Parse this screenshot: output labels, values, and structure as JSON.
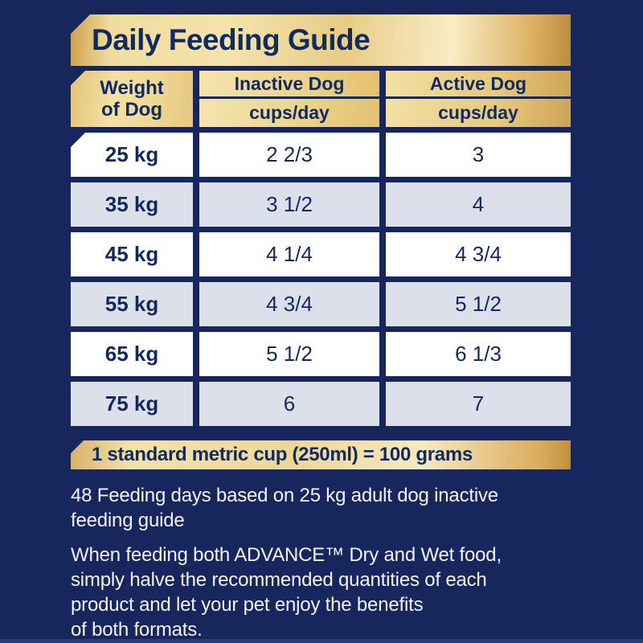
{
  "title": "Daily Feeding Guide",
  "table": {
    "weight_header": {
      "line1": "Weight",
      "line2": "of Dog"
    },
    "columns": [
      {
        "label": "Inactive Dog",
        "unit": "cups/day"
      },
      {
        "label": "Active Dog",
        "unit": "cups/day"
      }
    ],
    "rows": [
      {
        "weight": "25 kg",
        "inactive": "2 2/3",
        "active": "3"
      },
      {
        "weight": "35 kg",
        "inactive": "3 1/2",
        "active": "4"
      },
      {
        "weight": "45 kg",
        "inactive": "4 1/4",
        "active": "4 3/4"
      },
      {
        "weight": "55 kg",
        "inactive": "4 3/4",
        "active": "5 1/2"
      },
      {
        "weight": "65 kg",
        "inactive": "5 1/2",
        "active": "6 1/3"
      },
      {
        "weight": "75 kg",
        "inactive": "6",
        "active": "7"
      }
    ]
  },
  "cup_note": "1 standard metric cup (250ml) = 100 grams",
  "notes": {
    "feeding_days": {
      "line1": "48 Feeding days based on 25 kg adult dog inactive",
      "line2": "feeding guide"
    },
    "mixed_feeding": {
      "line1": "When feeding both ADVANCE™ Dry and Wet food,",
      "line2": "simply halve the recommended quantities of each",
      "line3": "product and let your pet enjoy the benefits",
      "line4": "of both formats."
    }
  },
  "colors": {
    "background_navy": "#17265C",
    "text_navy": "#13295E",
    "row_white": "#FFFFFF",
    "row_alt_gray": "#DCE0EA",
    "gold_light": "#F6E7B4",
    "gold_dark": "#BD8C3E",
    "body_text_white": "#F2F3F7"
  },
  "chart_data": {
    "type": "table",
    "title": "Daily Feeding Guide",
    "columns": [
      "Weight of Dog",
      "Inactive Dog (cups/day)",
      "Active Dog (cups/day)"
    ],
    "rows": [
      [
        "25 kg",
        "2 2/3",
        "3"
      ],
      [
        "35 kg",
        "3 1/2",
        "4"
      ],
      [
        "45 kg",
        "4 1/4",
        "4 3/4"
      ],
      [
        "55 kg",
        "4 3/4",
        "5 1/2"
      ],
      [
        "65 kg",
        "5 1/2",
        "6 1/3"
      ],
      [
        "75 kg",
        "6",
        "7"
      ]
    ],
    "footnotes": [
      "1 standard metric cup (250ml) = 100 grams",
      "48 Feeding days based on 25 kg adult dog inactive feeding guide",
      "When feeding both ADVANCE™ Dry and Wet food, simply halve the recommended quantities of each product and let your pet enjoy the benefits of both formats."
    ]
  }
}
